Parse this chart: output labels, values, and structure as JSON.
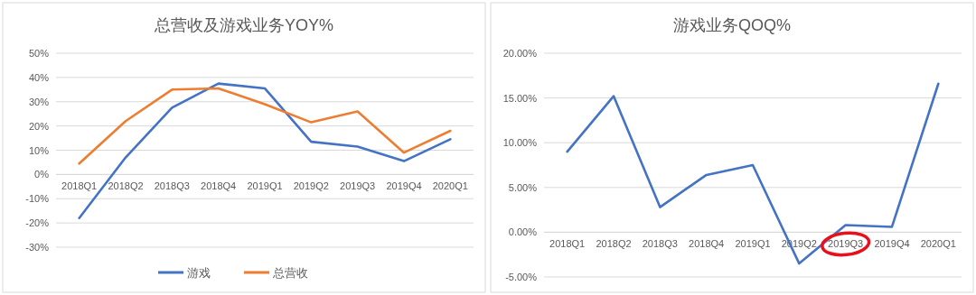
{
  "chart_data": [
    {
      "type": "line",
      "title": "总营收及游戏业务YOY%",
      "categories": [
        "2018Q1",
        "2018Q2",
        "2018Q3",
        "2018Q4",
        "2019Q1",
        "2019Q2",
        "2019Q3",
        "2019Q4",
        "2020Q1"
      ],
      "series": [
        {
          "name": "游戏",
          "color": "#4472c4",
          "values": [
            -18,
            7,
            27.5,
            37.5,
            35.5,
            13.5,
            11.5,
            5.5,
            14.5
          ]
        },
        {
          "name": "总营收",
          "color": "#ed7d31",
          "values": [
            4.5,
            22,
            35,
            35.5,
            29,
            21.5,
            26,
            9,
            18
          ]
        }
      ],
      "ylim": [
        -30,
        50
      ],
      "yticks": [
        {
          "value": -30,
          "label": "-30%"
        },
        {
          "value": -20,
          "label": "-20%"
        },
        {
          "value": -10,
          "label": "-10%"
        },
        {
          "value": 0,
          "label": "0%"
        },
        {
          "value": 10,
          "label": "10%"
        },
        {
          "value": 20,
          "label": "20%"
        },
        {
          "value": 30,
          "label": "30%"
        },
        {
          "value": 40,
          "label": "40%"
        },
        {
          "value": 50,
          "label": "50%"
        }
      ],
      "grid": "y",
      "legend": "bottom"
    },
    {
      "type": "line",
      "title": "游戏业务QOQ%",
      "categories": [
        "2018Q1",
        "2018Q2",
        "2018Q3",
        "2018Q4",
        "2019Q1",
        "2019Q2",
        "2019Q3",
        "2019Q4",
        "2020Q1"
      ],
      "series": [
        {
          "color": "#4472c4",
          "values": [
            9.0,
            15.2,
            2.8,
            6.4,
            7.5,
            -3.5,
            0.8,
            0.6,
            16.6
          ]
        }
      ],
      "ylim": [
        -5,
        20
      ],
      "yticks": [
        {
          "value": -5,
          "label": "-5.00%"
        },
        {
          "value": 0,
          "label": "0.00%"
        },
        {
          "value": 5,
          "label": "5.00%"
        },
        {
          "value": 10,
          "label": "10.00%"
        },
        {
          "value": 15,
          "label": "15.00%"
        },
        {
          "value": 20,
          "label": "20.00%"
        }
      ],
      "grid": "y"
    }
  ]
}
